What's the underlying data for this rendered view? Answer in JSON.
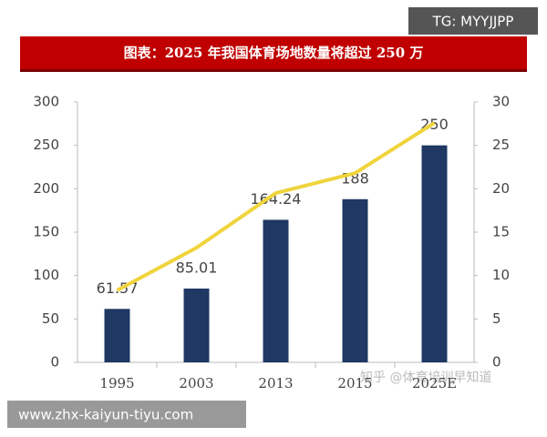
{
  "watermark_top": "TG: MYYJJPP",
  "watermark_bottom": "www.zhx-kaiyun-tiyu.com",
  "watermark_source": "知乎 @体育培训早知道",
  "chart_data": {
    "type": "bar",
    "title": "图表：2025 年我国体育场地数量将超过 250 万",
    "categories": [
      "1995",
      "2003",
      "2013",
      "2015",
      "2025E"
    ],
    "series": [
      {
        "type": "bar",
        "color": "#1f3864",
        "values": [
          61.57,
          85.01,
          164.24,
          188,
          250
        ]
      },
      {
        "type": "line",
        "color": "#f0d43c",
        "axis": "y2",
        "values": [
          8.3,
          13.2,
          19.5,
          21.8,
          27.6
        ]
      }
    ],
    "ylim": [
      0,
      300
    ],
    "yticks": [
      0,
      50,
      100,
      150,
      200,
      250,
      300
    ],
    "y2lim": [
      0,
      30
    ],
    "y2ticks": [
      0,
      5,
      10,
      15,
      20,
      25,
      30
    ]
  }
}
